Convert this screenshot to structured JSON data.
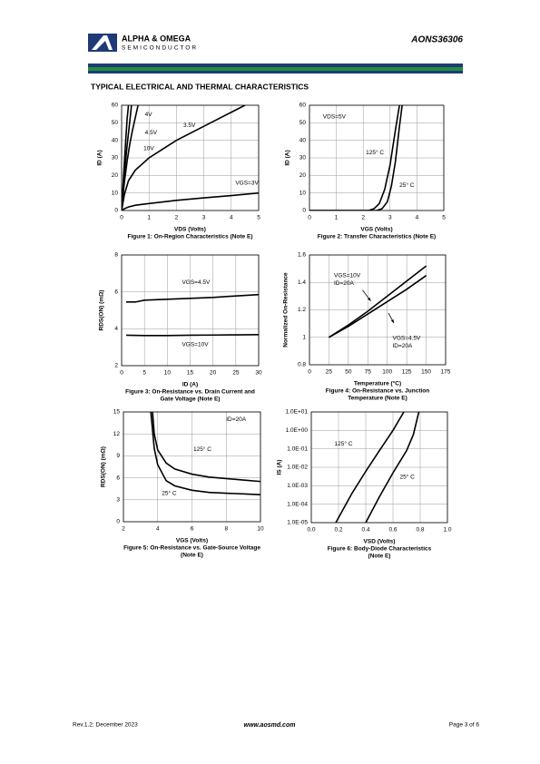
{
  "header": {
    "company": "ALPHA & OMEGA",
    "division": "SEMICONDUCTOR",
    "part": "AONS36306"
  },
  "section_title": "TYPICAL ELECTRICAL AND THERMAL CHARACTERISTICS",
  "footer": {
    "revision": "Rev.1.2: December 2023",
    "website": "www.aosmd.com",
    "page": "Page 3 of 6"
  },
  "chart_data": [
    {
      "type": "line",
      "title": [
        "Figure 1: On-Region Characteristics (Note E)"
      ],
      "xlabel": "VDS (Volts)",
      "ylabel": "ID (A)",
      "xlim": [
        0,
        5
      ],
      "xticks": [
        0,
        1,
        2,
        3,
        4,
        5
      ],
      "ylim": [
        0,
        60
      ],
      "yticks": [
        0,
        10,
        20,
        30,
        40,
        50,
        60
      ],
      "grid": true,
      "series": [
        {
          "name": "10V",
          "color": "#000000",
          "x": [
            0,
            0.05,
            0.1,
            0.15,
            0.2,
            0.25
          ],
          "values": [
            0,
            14,
            27,
            40,
            52,
            60
          ]
        },
        {
          "name": "4.5V",
          "color": "#000000",
          "x": [
            0,
            0.05,
            0.1,
            0.2,
            0.3,
            0.36
          ],
          "values": [
            0,
            11,
            21,
            37,
            51,
            60
          ]
        },
        {
          "name": "4V",
          "color": "#000000",
          "x": [
            0,
            0.1,
            0.2,
            0.3,
            0.4,
            0.5,
            0.6
          ],
          "values": [
            0,
            16,
            28,
            38,
            46,
            53,
            60
          ]
        },
        {
          "name": "3.5V",
          "color": "#000000",
          "x": [
            0,
            0.1,
            0.25,
            0.5,
            1,
            1.5,
            2,
            3,
            4,
            4.5
          ],
          "values": [
            0,
            9,
            17,
            23,
            30,
            35,
            40,
            48,
            56,
            60
          ]
        },
        {
          "name": "VGS=3V",
          "color": "#000000",
          "x": [
            0,
            0.1,
            0.25,
            0.5,
            1,
            2,
            3,
            4,
            5
          ],
          "values": [
            0,
            1,
            2,
            3,
            4,
            5.8,
            7.2,
            8.5,
            10
          ]
        }
      ],
      "annotations": []
    },
    {
      "type": "line",
      "title": [
        "Figure 2: Transfer Characteristics (Note E)"
      ],
      "xlabel": "VGS (Volts)",
      "ylabel": "ID (A)",
      "xlim": [
        0,
        5
      ],
      "xticks": [
        0,
        1,
        2,
        3,
        4,
        5
      ],
      "ylim": [
        0,
        60
      ],
      "yticks": [
        0,
        10,
        20,
        30,
        40,
        50,
        60
      ],
      "grid": true,
      "series": [
        {
          "name": "125° C",
          "color": "#000000",
          "x": [
            0,
            2.2,
            2.4,
            2.6,
            2.8,
            3,
            3.2,
            3.35
          ],
          "values": [
            0,
            0,
            1,
            4,
            12,
            26,
            46,
            60
          ]
        },
        {
          "name": "25° C",
          "color": "#000000",
          "x": [
            0,
            2.5,
            2.7,
            2.9,
            3.05,
            3.2,
            3.35,
            3.45
          ],
          "values": [
            0,
            0,
            1,
            5,
            14,
            28,
            48,
            60
          ]
        }
      ],
      "annotations": [
        "VDS=5V"
      ]
    },
    {
      "type": "line",
      "title": [
        "Figure 3: On-Resistance vs. Drain Current and",
        "Gate Voltage (Note E)"
      ],
      "xlabel": "ID (A)",
      "ylabel": "RDS(ON) (mΩ)",
      "xlim": [
        0,
        30
      ],
      "xticks": [
        0,
        5,
        10,
        15,
        20,
        25,
        30
      ],
      "ylim": [
        2,
        8
      ],
      "yticks": [
        2,
        4,
        6,
        8
      ],
      "grid": true,
      "series": [
        {
          "name": "VGS=4.5V",
          "color": "#000000",
          "x": [
            1,
            3,
            5,
            10,
            15,
            20,
            25,
            30
          ],
          "values": [
            5.45,
            5.45,
            5.55,
            5.6,
            5.65,
            5.7,
            5.78,
            5.85
          ]
        },
        {
          "name": "VGS=10V",
          "color": "#000000",
          "x": [
            1,
            5,
            10,
            15,
            20,
            25,
            30
          ],
          "values": [
            3.65,
            3.63,
            3.63,
            3.65,
            3.66,
            3.67,
            3.68
          ]
        }
      ],
      "annotations": []
    },
    {
      "type": "line",
      "title": [
        "Figure 4: On-Resistance vs. Junction",
        "Temperature (Note E)"
      ],
      "xlabel": "Temperature (°C)",
      "ylabel": "Normalized On-Resistance",
      "xlim": [
        0,
        175
      ],
      "xticks": [
        0,
        25,
        50,
        75,
        100,
        125,
        150,
        175
      ],
      "ylim": [
        0.8,
        1.6
      ],
      "yticks": [
        0.8,
        1,
        1.2,
        1.4,
        1.6
      ],
      "grid": true,
      "series": [
        {
          "name": "VGS=10V",
          "color": "#000000",
          "x": [
            25,
            50,
            75,
            100,
            125,
            150
          ],
          "values": [
            1,
            1.09,
            1.19,
            1.3,
            1.41,
            1.52
          ]
        },
        {
          "name": "VGS=4.5V",
          "color": "#000000",
          "x": [
            25,
            50,
            75,
            100,
            125,
            150
          ],
          "values": [
            1,
            1.08,
            1.17,
            1.26,
            1.35,
            1.45
          ]
        }
      ],
      "annotations": [
        "ID=20A",
        "ID=20A"
      ]
    },
    {
      "type": "line",
      "title": [
        "Figure 5: On-Resistance vs. Gate-Source Voltage",
        "(Note E)"
      ],
      "xlabel": "VGS (Volts)",
      "ylabel": "RDS(ON) (mΩ)",
      "xlim": [
        2,
        10
      ],
      "xticks": [
        2,
        4,
        6,
        8,
        10
      ],
      "ylim": [
        0,
        15
      ],
      "yticks": [
        0,
        3,
        6,
        9,
        12,
        15
      ],
      "grid": true,
      "series": [
        {
          "name": "125° C",
          "color": "#000000",
          "x": [
            3.7,
            3.8,
            4,
            4.5,
            5,
            6,
            7,
            8,
            9,
            10
          ],
          "values": [
            15,
            12,
            9.8,
            8,
            7.2,
            6.5,
            6.1,
            5.9,
            5.7,
            5.5
          ]
        },
        {
          "name": "25° C",
          "color": "#000000",
          "x": [
            3.6,
            3.8,
            4,
            4.5,
            5,
            6,
            7,
            8,
            9,
            10
          ],
          "values": [
            15,
            10,
            7.8,
            5.6,
            4.9,
            4.3,
            4,
            3.9,
            3.8,
            3.7
          ]
        }
      ],
      "annotations": [
        "ID=20A"
      ]
    },
    {
      "type": "line",
      "title": [
        "Figure 6: Body-Diode Characteristics",
        "(Note E)"
      ],
      "xlabel": "VSD (Volts)",
      "ylabel": "IS (A)",
      "ylog": true,
      "xlim": [
        0,
        1
      ],
      "xticks": [
        {
          "value": 0,
          "label": "0.0"
        },
        0.2,
        0.4,
        0.6,
        0.8,
        {
          "value": 1,
          "label": "1.0"
        }
      ],
      "ylim": [
        1e-05,
        10
      ],
      "yticks": [
        {
          "value": 10,
          "label": "1.0E+01"
        },
        {
          "value": 1,
          "label": "1.0E+00"
        },
        {
          "value": 0.1,
          "label": "1.0E-01"
        },
        {
          "value": 0.01,
          "label": "1.0E-02"
        },
        {
          "value": 0.001,
          "label": "1.0E-03"
        },
        {
          "value": 0.0001,
          "label": "1.0E-04"
        },
        {
          "value": 1e-05,
          "label": "1.0E-05"
        }
      ],
      "grid": true,
      "series": [
        {
          "name": "125° C",
          "color": "#000000",
          "x": [
            0.18,
            0.3,
            0.4,
            0.5,
            0.6,
            0.68
          ],
          "values": [
            1e-05,
            0.0004,
            0.006,
            0.08,
            1,
            10
          ]
        },
        {
          "name": "25° C",
          "color": "#000000",
          "x": [
            0.4,
            0.5,
            0.6,
            0.7,
            0.75,
            0.79
          ],
          "values": [
            1e-05,
            0.00025,
            0.005,
            0.08,
            0.6,
            10
          ]
        }
      ],
      "annotations": []
    }
  ]
}
